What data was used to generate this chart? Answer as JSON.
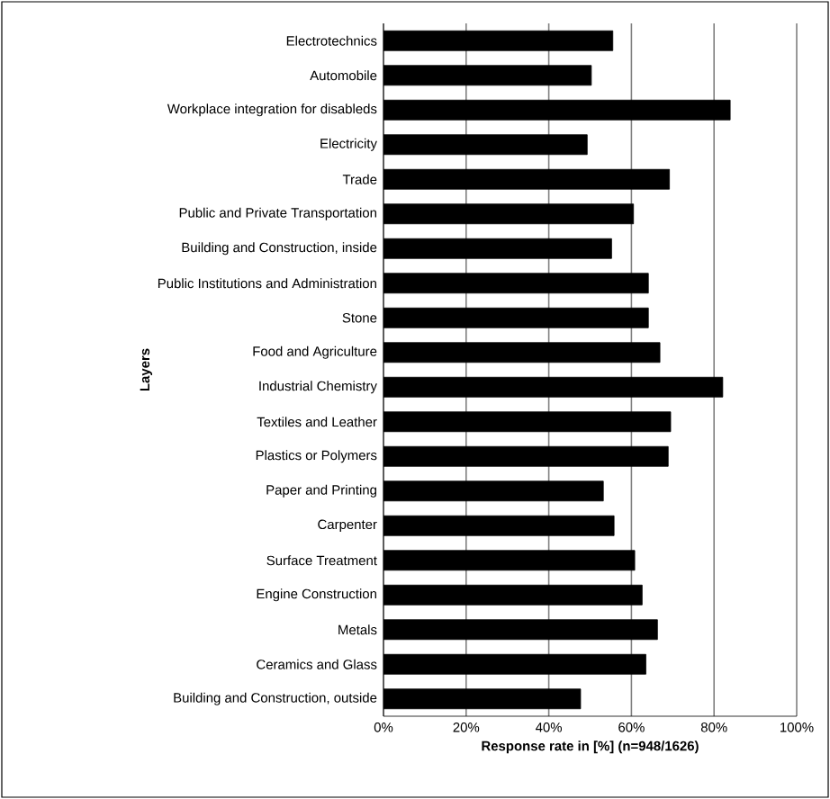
{
  "chart_data": {
    "type": "bar",
    "orientation": "horizontal",
    "xlabel": "Response rate in [%] (n=948/1626)",
    "ylabel": "Layers",
    "categories": [
      "Electrotechnics",
      "Automobile",
      "Workplace integration for disableds",
      "Electricity",
      "Trade",
      "Public and Private Transportation",
      "Building and Construction, inside",
      "Public Institutions and Administration",
      "Stone",
      "Food and Agriculture",
      "Industrial Chemistry",
      "Textiles and Leather",
      "Plastics or Polymers",
      "Paper and Printing",
      "Carpenter",
      "Surface Treatment",
      "Engine Construction",
      "Metals",
      "Ceramics and Glass",
      "Building and Construction, outside"
    ],
    "values": [
      55.5,
      50.3,
      83.9,
      49.3,
      69.2,
      60.5,
      55.2,
      64.1,
      64.1,
      66.9,
      82.1,
      69.5,
      68.9,
      53.2,
      55.8,
      60.8,
      62.6,
      66.3,
      63.5,
      47.7
    ],
    "color": "#000000",
    "xlim": [
      0,
      100
    ],
    "xticks": [
      {
        "value": 0,
        "label": "0%"
      },
      {
        "value": 20,
        "label": "20%"
      },
      {
        "value": 40,
        "label": "40%"
      },
      {
        "value": 60,
        "label": "60%"
      },
      {
        "value": 80,
        "label": "80%"
      },
      {
        "value": 100,
        "label": "100%"
      }
    ],
    "grid": "x"
  }
}
